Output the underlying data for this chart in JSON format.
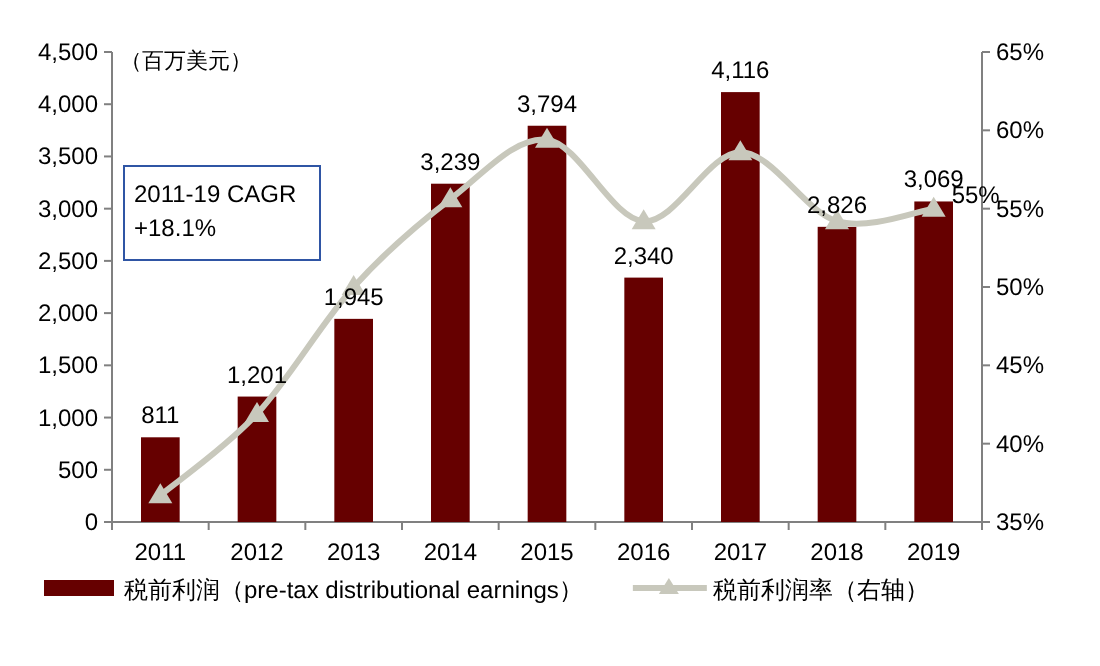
{
  "chart_data": {
    "type": "bar",
    "ylabel": "（百万美元）",
    "categories": [
      "2011",
      "2012",
      "2013",
      "2014",
      "2015",
      "2016",
      "2017",
      "2018",
      "2019"
    ],
    "series": [
      {
        "name": "税前利润（pre-tax distributional earnings）",
        "color": "#660000",
        "values": [
          811,
          1201,
          1945,
          3239,
          3794,
          2340,
          4116,
          2826,
          3069
        ],
        "value_labels": [
          "811",
          "1,201",
          "1,945",
          "3,239",
          "3,794",
          "2,340",
          "4,116",
          "2,826",
          "3,069"
        ]
      },
      {
        "name": "税前利润率（右轴）",
        "type": "line",
        "axis": "y2",
        "color": "#c8c8bc",
        "marker": "triangle",
        "values": [
          36.7,
          41.9,
          50.0,
          55.6,
          59.4,
          54.2,
          58.6,
          54.2,
          55.0
        ],
        "value_labels": [
          null,
          null,
          null,
          null,
          null,
          null,
          null,
          null,
          "55%"
        ]
      }
    ],
    "ylim": [
      0,
      4500
    ],
    "yticks": [
      0,
      500,
      {
        "value": 1000,
        "label": "1,000"
      },
      {
        "value": 1500,
        "label": "1,500"
      },
      {
        "value": 2000,
        "label": "2,000"
      },
      {
        "value": 2500,
        "label": "2,500"
      },
      {
        "value": 3000,
        "label": "3,000"
      },
      {
        "value": 3500,
        "label": "3,500"
      },
      {
        "value": 4000,
        "label": "4,000"
      },
      {
        "value": 4500,
        "label": "4,500"
      }
    ],
    "y2lim": [
      35,
      65
    ],
    "y2ticks": [
      {
        "value": 35,
        "label": "35%"
      },
      {
        "value": 40,
        "label": "40%"
      },
      {
        "value": 45,
        "label": "45%"
      },
      {
        "value": 50,
        "label": "50%"
      },
      {
        "value": 55,
        "label": "55%"
      },
      {
        "value": 60,
        "label": "60%"
      },
      {
        "value": 65,
        "label": "65%"
      }
    ],
    "annotations": [
      "2011-19 CAGR\n+18.1%"
    ],
    "legend": "bottom",
    "grid": false
  }
}
